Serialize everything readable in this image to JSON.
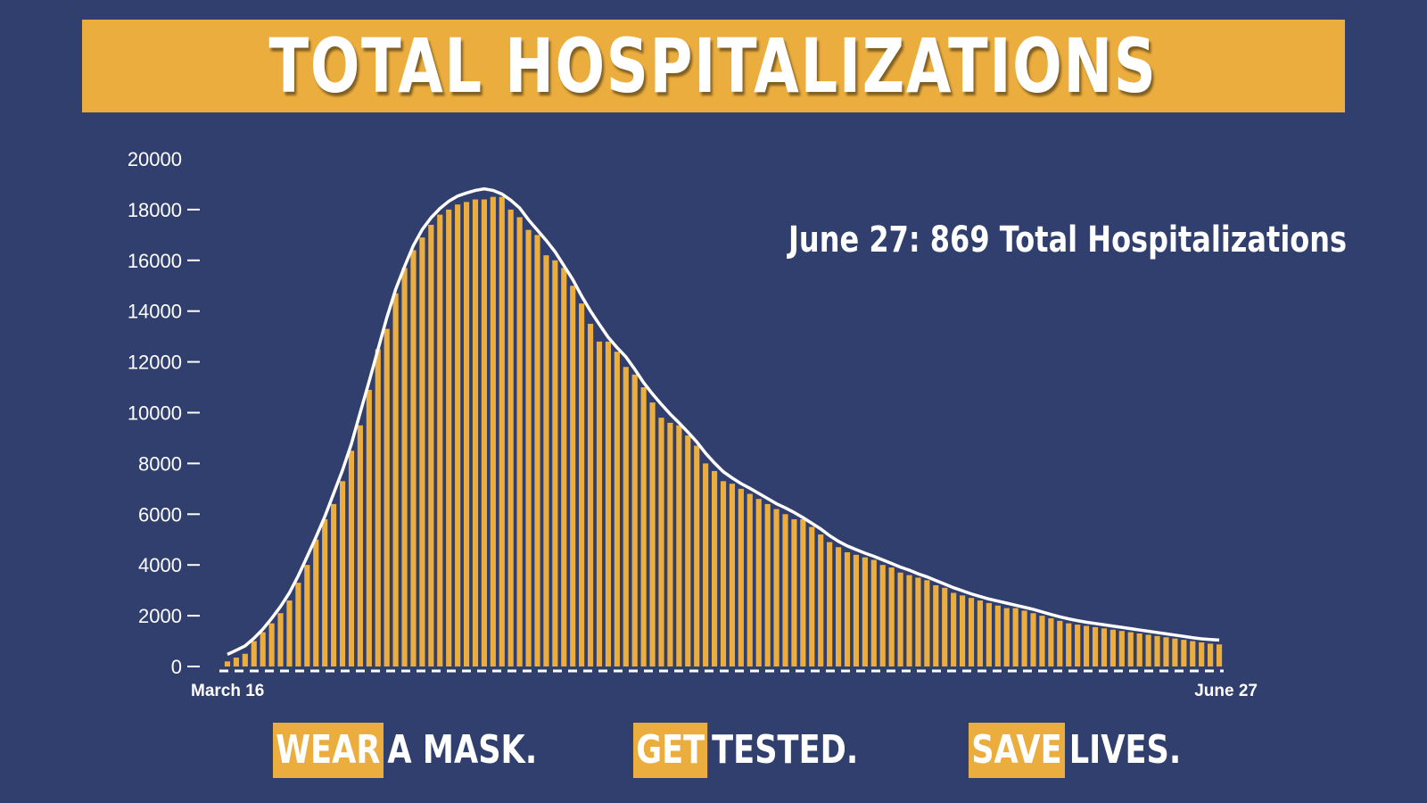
{
  "header": {
    "title": "TOTAL HOSPITALIZATIONS"
  },
  "annotation": "June 27: 869 Total Hospitalizations",
  "footer": [
    {
      "highlight": "WEAR",
      "rest": "A MASK."
    },
    {
      "highlight": "GET",
      "rest": "TESTED."
    },
    {
      "highlight": "SAVE",
      "rest": "LIVES."
    }
  ],
  "colors": {
    "background": "#313f6e",
    "accent": "#ebad3d",
    "line": "#ffffff"
  },
  "chart_data": {
    "type": "bar",
    "title": "TOTAL HOSPITALIZATIONS",
    "xlabel": "",
    "ylabel": "",
    "ylim": [
      0,
      20000
    ],
    "yticks": [
      0,
      2000,
      4000,
      6000,
      8000,
      10000,
      12000,
      14000,
      16000,
      18000,
      20000
    ],
    "x_start_label": "March 16",
    "x_end_label": "June 27",
    "overlay": "smooth white trend line",
    "grid": false,
    "values": [
      200,
      350,
      500,
      1000,
      1350,
      1700,
      2100,
      2600,
      3300,
      4000,
      5000,
      5800,
      6400,
      7300,
      8500,
      9500,
      10900,
      12500,
      13300,
      14700,
      15700,
      16400,
      16900,
      17400,
      17800,
      18000,
      18200,
      18300,
      18400,
      18400,
      18500,
      18500,
      18000,
      17700,
      17200,
      17000,
      16200,
      16000,
      15700,
      15000,
      14300,
      13500,
      12800,
      12800,
      12400,
      11800,
      11500,
      11000,
      10400,
      9800,
      9600,
      9500,
      9100,
      8700,
      8000,
      7700,
      7300,
      7200,
      7000,
      6800,
      6600,
      6400,
      6200,
      6000,
      5800,
      5800,
      5500,
      5200,
      4900,
      4700,
      4500,
      4400,
      4300,
      4200,
      4000,
      3900,
      3700,
      3600,
      3500,
      3400,
      3200,
      3100,
      2900,
      2800,
      2700,
      2600,
      2500,
      2400,
      2300,
      2300,
      2200,
      2100,
      2000,
      1900,
      1800,
      1700,
      1650,
      1600,
      1550,
      1500,
      1450,
      1400,
      1350,
      1300,
      1250,
      1200,
      1150,
      1100,
      1050,
      1000,
      950,
      900,
      869
    ]
  }
}
